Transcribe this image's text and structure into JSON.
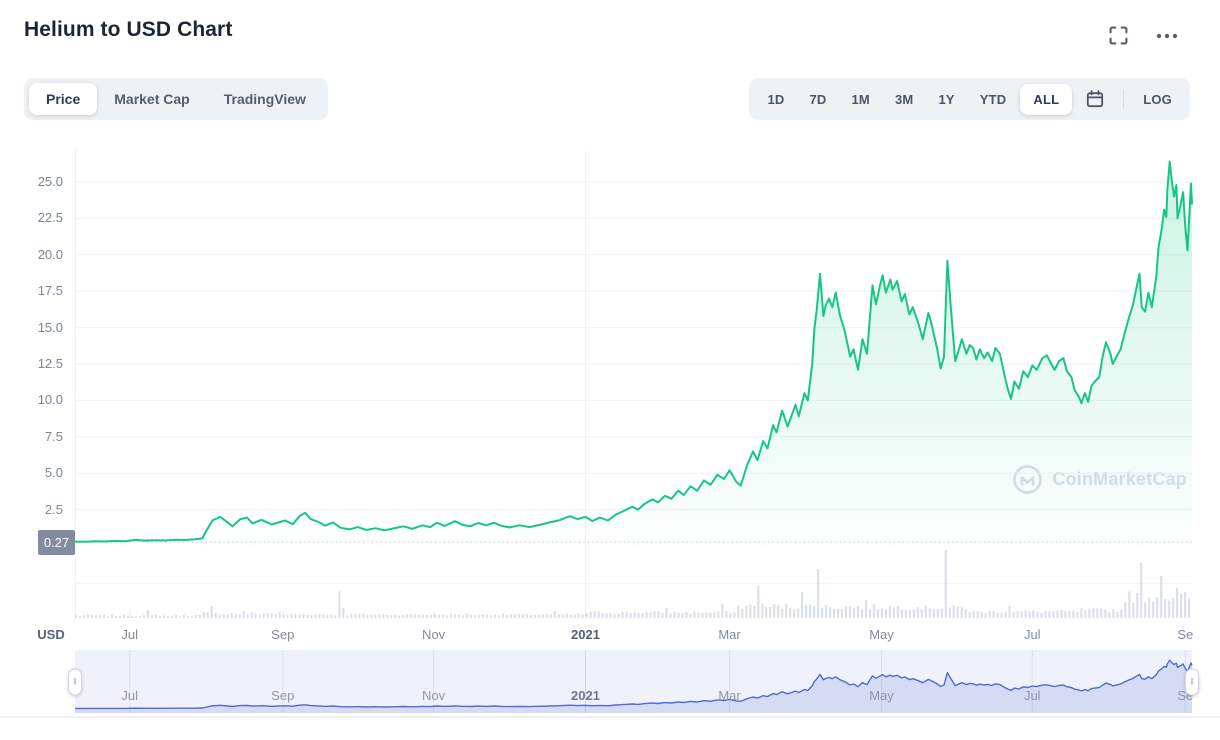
{
  "header": {
    "title": "Helium to USD Chart"
  },
  "icons": {
    "fullscreen": "fullscreen-icon",
    "more": "ellipsis-icon",
    "calendar": "calendar-icon",
    "navigator_handle": "drag-handle-icon",
    "watermark_logo": "coinmarketcap-logo-icon"
  },
  "tabs": {
    "items": [
      "Price",
      "Market Cap",
      "TradingView"
    ],
    "active": "Price"
  },
  "range_controls": {
    "items": [
      "1D",
      "7D",
      "1M",
      "3M",
      "1Y",
      "YTD",
      "ALL"
    ],
    "active": "ALL",
    "log_label": "LOG"
  },
  "axis": {
    "unit_label": "USD",
    "current_price_label": "0.27"
  },
  "watermark": {
    "text": "CoinMarketCap"
  },
  "colors": {
    "accent_green": "#16c784",
    "grid": "#f0f2f5",
    "dotted_baseline": "#b3bac7",
    "volume_bar": "#dce0e9",
    "nav_bg": "#eff1fb",
    "nav_line": "#5069d6",
    "nav_fill": "rgba(86,108,214,0.16)",
    "badge_bg": "#828c9e"
  },
  "chart_data": {
    "type": "line",
    "title": "Helium to USD Chart",
    "ylabel": "USD",
    "ylim": [
      0,
      27.2
    ],
    "baseline_price": 0.27,
    "legend": "none",
    "grid": "horizontal",
    "y_ticks": [
      {
        "label": "25.0",
        "value": 25.0
      },
      {
        "label": "22.5",
        "value": 22.5
      },
      {
        "label": "20.0",
        "value": 20.0
      },
      {
        "label": "17.5",
        "value": 17.5
      },
      {
        "label": "15.0",
        "value": 15.0
      },
      {
        "label": "12.5",
        "value": 12.5
      },
      {
        "label": "10.0",
        "value": 10.0
      },
      {
        "label": "7.5",
        "value": 7.5
      },
      {
        "label": "5.0",
        "value": 5.0
      },
      {
        "label": "2.5",
        "value": 2.5
      }
    ],
    "x_ticks": [
      {
        "label": "Jul",
        "f": 0.049,
        "year": false
      },
      {
        "label": "Sep",
        "f": 0.186,
        "year": false
      },
      {
        "label": "Nov",
        "f": 0.321,
        "year": false
      },
      {
        "label": "2021",
        "f": 0.457,
        "year": true
      },
      {
        "label": "Mar",
        "f": 0.586,
        "year": false
      },
      {
        "label": "May",
        "f": 0.722,
        "year": false
      },
      {
        "label": "Jul",
        "f": 0.857,
        "year": false
      },
      {
        "label": "Se",
        "f": 0.994,
        "year": false
      }
    ],
    "points": [
      [
        0,
        0.3
      ],
      [
        0.009,
        0.29
      ],
      [
        0.018,
        0.33
      ],
      [
        0.027,
        0.31
      ],
      [
        0.036,
        0.35
      ],
      [
        0.045,
        0.33
      ],
      [
        0.054,
        0.42
      ],
      [
        0.063,
        0.37
      ],
      [
        0.072,
        0.4
      ],
      [
        0.081,
        0.38
      ],
      [
        0.09,
        0.43
      ],
      [
        0.098,
        0.41
      ],
      [
        0.107,
        0.45
      ],
      [
        0.114,
        0.52
      ],
      [
        0.118,
        1.1
      ],
      [
        0.123,
        1.75
      ],
      [
        0.13,
        2
      ],
      [
        0.137,
        1.6
      ],
      [
        0.141,
        1.35
      ],
      [
        0.148,
        1.85
      ],
      [
        0.154,
        1.95
      ],
      [
        0.159,
        1.55
      ],
      [
        0.167,
        1.8
      ],
      [
        0.176,
        1.48
      ],
      [
        0.188,
        1.75
      ],
      [
        0.195,
        1.5
      ],
      [
        0.201,
        2.05
      ],
      [
        0.206,
        2.28
      ],
      [
        0.211,
        1.85
      ],
      [
        0.218,
        1.65
      ],
      [
        0.224,
        1.4
      ],
      [
        0.231,
        1.62
      ],
      [
        0.238,
        1.25
      ],
      [
        0.246,
        1.15
      ],
      [
        0.253,
        1.3
      ],
      [
        0.261,
        1.1
      ],
      [
        0.269,
        1.22
      ],
      [
        0.277,
        1.08
      ],
      [
        0.285,
        1.2
      ],
      [
        0.294,
        1.35
      ],
      [
        0.302,
        1.18
      ],
      [
        0.311,
        1.42
      ],
      [
        0.318,
        1.3
      ],
      [
        0.324,
        1.6
      ],
      [
        0.331,
        1.38
      ],
      [
        0.34,
        1.7
      ],
      [
        0.347,
        1.45
      ],
      [
        0.354,
        1.35
      ],
      [
        0.361,
        1.58
      ],
      [
        0.368,
        1.42
      ],
      [
        0.375,
        1.6
      ],
      [
        0.382,
        1.38
      ],
      [
        0.389,
        1.28
      ],
      [
        0.398,
        1.42
      ],
      [
        0.407,
        1.3
      ],
      [
        0.416,
        1.45
      ],
      [
        0.425,
        1.62
      ],
      [
        0.434,
        1.78
      ],
      [
        0.443,
        2.05
      ],
      [
        0.45,
        1.85
      ],
      [
        0.457,
        2
      ],
      [
        0.463,
        1.72
      ],
      [
        0.47,
        1.95
      ],
      [
        0.477,
        1.75
      ],
      [
        0.484,
        2.15
      ],
      [
        0.491,
        2.4
      ],
      [
        0.499,
        2.7
      ],
      [
        0.504,
        2.5
      ],
      [
        0.51,
        2.9
      ],
      [
        0.517,
        3.2
      ],
      [
        0.522,
        3
      ],
      [
        0.528,
        3.45
      ],
      [
        0.534,
        3.25
      ],
      [
        0.54,
        3.8
      ],
      [
        0.545,
        3.5
      ],
      [
        0.551,
        4.1
      ],
      [
        0.557,
        3.8
      ],
      [
        0.563,
        4.5
      ],
      [
        0.569,
        4.2
      ],
      [
        0.575,
        4.9
      ],
      [
        0.581,
        4.6
      ],
      [
        0.586,
        5.2
      ],
      [
        0.592,
        4.4
      ],
      [
        0.596,
        4.15
      ],
      [
        0.602,
        5.6
      ],
      [
        0.607,
        6.5
      ],
      [
        0.611,
        5.9
      ],
      [
        0.616,
        7.2
      ],
      [
        0.62,
        6.7
      ],
      [
        0.625,
        8.3
      ],
      [
        0.628,
        7.8
      ],
      [
        0.633,
        9.3
      ],
      [
        0.638,
        8.2
      ],
      [
        0.645,
        9.7
      ],
      [
        0.648,
        8.9
      ],
      [
        0.653,
        10.5
      ],
      [
        0.656,
        10
      ],
      [
        0.66,
        12.5
      ],
      [
        0.662,
        15
      ],
      [
        0.664,
        16.2
      ],
      [
        0.667,
        18.7
      ],
      [
        0.67,
        15.8
      ],
      [
        0.672,
        16.5
      ],
      [
        0.675,
        17
      ],
      [
        0.678,
        16.4
      ],
      [
        0.681,
        17.4
      ],
      [
        0.685,
        15.8
      ],
      [
        0.689,
        14.8
      ],
      [
        0.694,
        13
      ],
      [
        0.697,
        13.5
      ],
      [
        0.701,
        12.1
      ],
      [
        0.705,
        14.2
      ],
      [
        0.709,
        13.2
      ],
      [
        0.714,
        17.9
      ],
      [
        0.717,
        16.6
      ],
      [
        0.721,
        18
      ],
      [
        0.723,
        18.6
      ],
      [
        0.726,
        17.4
      ],
      [
        0.73,
        18.3
      ],
      [
        0.732,
        17.6
      ],
      [
        0.736,
        18.2
      ],
      [
        0.74,
        16.8
      ],
      [
        0.743,
        17.3
      ],
      [
        0.747,
        15.9
      ],
      [
        0.75,
        16.4
      ],
      [
        0.755,
        15.3
      ],
      [
        0.759,
        14.2
      ],
      [
        0.764,
        16
      ],
      [
        0.767,
        15.2
      ],
      [
        0.772,
        13.5
      ],
      [
        0.775,
        12.2
      ],
      [
        0.778,
        13
      ],
      [
        0.781,
        19.6
      ],
      [
        0.784,
        16.5
      ],
      [
        0.788,
        12.7
      ],
      [
        0.791,
        13.4
      ],
      [
        0.794,
        14.2
      ],
      [
        0.798,
        13.2
      ],
      [
        0.801,
        13.8
      ],
      [
        0.804,
        13.6
      ],
      [
        0.807,
        12.8
      ],
      [
        0.81,
        13.5
      ],
      [
        0.814,
        12.9
      ],
      [
        0.817,
        13.3
      ],
      [
        0.821,
        12.7
      ],
      [
        0.824,
        13.6
      ],
      [
        0.828,
        13.2
      ],
      [
        0.832,
        11.8
      ],
      [
        0.835,
        10.8
      ],
      [
        0.838,
        10.1
      ],
      [
        0.841,
        11.3
      ],
      [
        0.845,
        10.8
      ],
      [
        0.849,
        12
      ],
      [
        0.853,
        11.6
      ],
      [
        0.857,
        12.4
      ],
      [
        0.861,
        12.1
      ],
      [
        0.866,
        12.9
      ],
      [
        0.87,
        13.1
      ],
      [
        0.874,
        12.5
      ],
      [
        0.877,
        12.1
      ],
      [
        0.881,
        12.7
      ],
      [
        0.885,
        12.9
      ],
      [
        0.888,
        12
      ],
      [
        0.892,
        11.6
      ],
      [
        0.895,
        10.7
      ],
      [
        0.899,
        10.2
      ],
      [
        0.901,
        9.8
      ],
      [
        0.904,
        10.5
      ],
      [
        0.907,
        9.9
      ],
      [
        0.91,
        11
      ],
      [
        0.913,
        11.3
      ],
      [
        0.917,
        11.6
      ],
      [
        0.92,
        13
      ],
      [
        0.923,
        14
      ],
      [
        0.927,
        13.2
      ],
      [
        0.929,
        12.5
      ],
      [
        0.933,
        13.1
      ],
      [
        0.936,
        13.5
      ],
      [
        0.94,
        14.7
      ],
      [
        0.944,
        15.8
      ],
      [
        0.947,
        16.5
      ],
      [
        0.95,
        17.6
      ],
      [
        0.953,
        18.7
      ],
      [
        0.955,
        16.4
      ],
      [
        0.958,
        16.1
      ],
      [
        0.961,
        17.4
      ],
      [
        0.964,
        16.4
      ],
      [
        0.968,
        18.5
      ],
      [
        0.97,
        20.5
      ],
      [
        0.973,
        21.8
      ],
      [
        0.975,
        23.1
      ],
      [
        0.977,
        22.6
      ],
      [
        0.978,
        24.5
      ],
      [
        0.98,
        26.4
      ],
      [
        0.982,
        25
      ],
      [
        0.984,
        24
      ],
      [
        0.986,
        24.8
      ],
      [
        0.987,
        22.5
      ],
      [
        0.99,
        23.5
      ],
      [
        0.992,
        24.3
      ],
      [
        0.994,
        21.9
      ],
      [
        0.996,
        20.3
      ],
      [
        0.998,
        23.3
      ],
      [
        0.999,
        24.9
      ],
      [
        1,
        23.5
      ]
    ],
    "volume_segments": [
      [
        32,
        1.5,
        2,
        [
          [
            18,
            8
          ]
        ]
      ],
      [
        20,
        3,
        3,
        [
          [
            2,
            12
          ],
          [
            10,
            7
          ]
        ]
      ],
      [
        38,
        2.5,
        2,
        [
          [
            14,
            27
          ],
          [
            15,
            10
          ]
        ]
      ],
      [
        38,
        2.5,
        2,
        [
          [
            30,
            7
          ]
        ]
      ],
      [
        38,
        4,
        3,
        [
          [
            20,
            10
          ],
          [
            34,
            14
          ]
        ]
      ],
      [
        20,
        8,
        7,
        [
          [
            5,
            32
          ],
          [
            16,
            26
          ]
        ]
      ],
      [
        26,
        8,
        6,
        [
          [
            0,
            49
          ],
          [
            12,
            18
          ]
        ]
      ],
      [
        12,
        8,
        5,
        [
          [
            6,
            68
          ]
        ]
      ],
      [
        28,
        5,
        3,
        [
          [
            10,
            12
          ]
        ]
      ],
      [
        12,
        6,
        4,
        [
          [
            11,
            16
          ]
        ]
      ],
      [
        16,
        15,
        12,
        [
          [
            3,
            55
          ],
          [
            8,
            42
          ],
          [
            12,
            30
          ]
        ]
      ]
    ],
    "navigator_x_ticks_same_as_main": true
  }
}
